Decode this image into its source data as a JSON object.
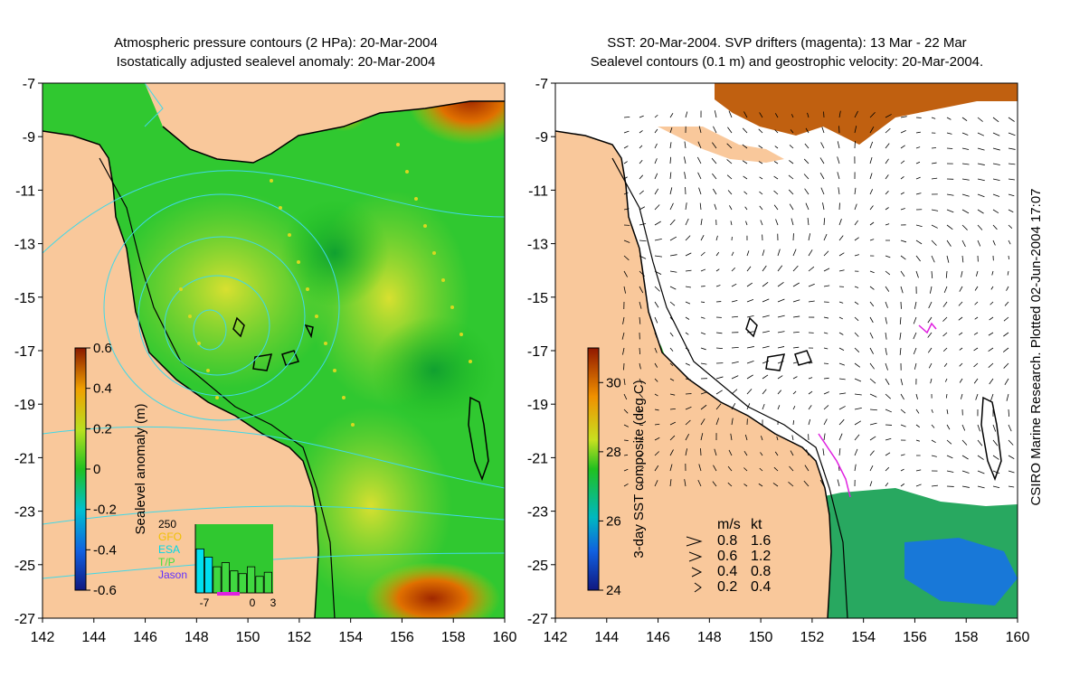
{
  "left_panel": {
    "title_line1": "Atmospheric pressure contours (2 HPa): 20-Mar-2004",
    "title_line2": "Isostatically adjusted sealevel anomaly: 20-Mar-2004",
    "colorbar_label": "Sealevel anomaly (m)",
    "colorbar_ticks": [
      "0.6",
      "0.4",
      "0.2",
      "0",
      "-0.2",
      "-0.4",
      "-0.6"
    ],
    "colorbar_range": [
      -0.6,
      0.6
    ],
    "inset": {
      "ymax_label": "250",
      "legend": [
        {
          "label": "GFO",
          "color": "#f0c000"
        },
        {
          "label": "ESA",
          "color": "#00d8e8"
        },
        {
          "label": "T/P",
          "color": "#40e040"
        },
        {
          "label": "Jason",
          "color": "#6030ff"
        }
      ],
      "x_ticks": [
        "-7",
        "0",
        "3"
      ],
      "bars": [
        {
          "value": 160,
          "color": "#00e0f0"
        },
        {
          "value": 130,
          "color": "#00e0f0"
        },
        {
          "value": 95,
          "color": "#40d840"
        },
        {
          "value": 110,
          "color": "#40d840"
        },
        {
          "value": 80,
          "color": "#40d840"
        },
        {
          "value": 70,
          "color": "#40d840"
        },
        {
          "value": 95,
          "color": "#40d840"
        },
        {
          "value": 60,
          "color": "#40d840"
        },
        {
          "value": 75,
          "color": "#40d840"
        }
      ]
    }
  },
  "right_panel": {
    "title_line1": "SST: 20-Mar-2004. SVP drifters (magenta): 13 Mar - 22 Mar",
    "title_line2": "Sealevel contours (0.1 m) and geostrophic velocity: 20-Mar-2004.",
    "colorbar_label": "3-day SST composite (deg C)",
    "colorbar_ticks": [
      "30",
      "28",
      "26",
      "24"
    ],
    "colorbar_range": [
      24,
      31
    ],
    "velocity_legend": {
      "header_ms": "m/s",
      "header_kt": "kt",
      "rows": [
        {
          "ms": "0.8",
          "kt": "1.6"
        },
        {
          "ms": "0.6",
          "kt": "1.2"
        },
        {
          "ms": "0.4",
          "kt": "0.8"
        },
        {
          "ms": "0.2",
          "kt": "0.4"
        }
      ]
    },
    "credit": "CSIRO Marine Research. Plotted 02-Jun-2004 17:07"
  },
  "axes": {
    "x_ticks": [
      "142",
      "144",
      "146",
      "148",
      "150",
      "152",
      "154",
      "156",
      "158",
      "160"
    ],
    "y_ticks": [
      "-7",
      "-9",
      "-11",
      "-13",
      "-15",
      "-17",
      "-19",
      "-21",
      "-23",
      "-25",
      "-27"
    ],
    "xlim": [
      142,
      160
    ],
    "ylim": [
      -27,
      -7
    ]
  },
  "colors": {
    "land": "#f9c89b",
    "ocean_blank": "#ffffff",
    "anomaly_base": "#30c830",
    "contour": "#40d8e8",
    "drifter": "#e020e0"
  }
}
